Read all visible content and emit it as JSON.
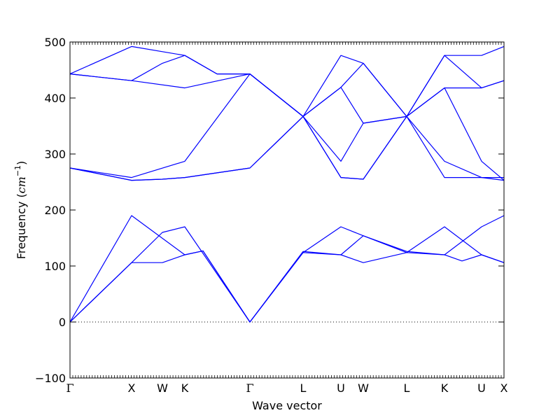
{
  "chart_data": {
    "type": "line",
    "title": "",
    "xlabel": "Wave vector",
    "ylabel": {
      "text": "Frequency (",
      "unit": "cm",
      "exponent": "−1",
      "close": ")"
    },
    "ylim": [
      -100,
      500
    ],
    "yticks": [
      -100,
      0,
      100,
      200,
      300,
      400,
      500
    ],
    "x_range": [
      0,
      620
    ],
    "zero_line": true,
    "line_color": "#0000ff",
    "high_symmetry_points": [
      {
        "label": "Γ",
        "x": 0
      },
      {
        "label": "X",
        "x": 88
      },
      {
        "label": "W",
        "x": 132
      },
      {
        "label": "K",
        "x": 164
      },
      {
        "label": "Γ",
        "x": 257
      },
      {
        "label": "L",
        "x": 333
      },
      {
        "label": "U",
        "x": 387
      },
      {
        "label": "W",
        "x": 419
      },
      {
        "label": "L",
        "x": 481
      },
      {
        "label": "K",
        "x": 535
      },
      {
        "label": "U",
        "x": 588
      },
      {
        "label": "X",
        "x": 620
      }
    ],
    "series": [
      {
        "points": [
          [
            0,
            0
          ],
          [
            88,
            106
          ],
          [
            132,
            106
          ],
          [
            164,
            120
          ],
          [
            190,
            127
          ],
          [
            257,
            0
          ],
          [
            333,
            124
          ],
          [
            387,
            120
          ],
          [
            419,
            106
          ],
          [
            481,
            124
          ],
          [
            535,
            120
          ],
          [
            560,
            109
          ],
          [
            588,
            120
          ],
          [
            620,
            106
          ]
        ]
      },
      {
        "points": [
          [
            0,
            0
          ],
          [
            88,
            106
          ],
          [
            132,
            160
          ],
          [
            164,
            170
          ],
          [
            257,
            0
          ],
          [
            333,
            124
          ],
          [
            387,
            170
          ],
          [
            419,
            154
          ],
          [
            481,
            124
          ],
          [
            535,
            170
          ],
          [
            588,
            120
          ],
          [
            620,
            106
          ]
        ]
      },
      {
        "points": [
          [
            0,
            0
          ],
          [
            88,
            190
          ],
          [
            164,
            120
          ],
          [
            190,
            127
          ],
          [
            257,
            0
          ],
          [
            333,
            126
          ],
          [
            387,
            120
          ],
          [
            419,
            154
          ],
          [
            481,
            126
          ],
          [
            535,
            120
          ],
          [
            588,
            170
          ],
          [
            620,
            190
          ]
        ]
      },
      {
        "points": [
          [
            0,
            275
          ],
          [
            88,
            253
          ],
          [
            132,
            255
          ],
          [
            164,
            258
          ],
          [
            257,
            275
          ],
          [
            333,
            367
          ],
          [
            387,
            258
          ],
          [
            419,
            255
          ],
          [
            481,
            367
          ],
          [
            535,
            258
          ],
          [
            588,
            258
          ],
          [
            620,
            258
          ]
        ]
      },
      {
        "points": [
          [
            0,
            275
          ],
          [
            88,
            253
          ],
          [
            132,
            255
          ],
          [
            164,
            258
          ],
          [
            257,
            275
          ],
          [
            333,
            367
          ],
          [
            387,
            287
          ],
          [
            419,
            355
          ],
          [
            481,
            367
          ],
          [
            535,
            287
          ],
          [
            588,
            258
          ],
          [
            620,
            253
          ]
        ]
      },
      {
        "points": [
          [
            0,
            275
          ],
          [
            88,
            258
          ],
          [
            164,
            287
          ],
          [
            257,
            443
          ],
          [
            333,
            367
          ],
          [
            387,
            258
          ],
          [
            419,
            255
          ],
          [
            481,
            367
          ],
          [
            535,
            418
          ],
          [
            588,
            287
          ],
          [
            620,
            253
          ]
        ]
      },
      {
        "points": [
          [
            0,
            443
          ],
          [
            88,
            431
          ],
          [
            164,
            418
          ],
          [
            257,
            443
          ],
          [
            333,
            367
          ],
          [
            387,
            419
          ],
          [
            419,
            462
          ],
          [
            481,
            367
          ],
          [
            535,
            418
          ],
          [
            588,
            418
          ],
          [
            620,
            431
          ]
        ]
      },
      {
        "points": [
          [
            0,
            443
          ],
          [
            88,
            431
          ],
          [
            132,
            462
          ],
          [
            164,
            476
          ],
          [
            210,
            443
          ],
          [
            257,
            443
          ],
          [
            333,
            367
          ],
          [
            387,
            476
          ],
          [
            419,
            462
          ],
          [
            481,
            367
          ],
          [
            535,
            476
          ],
          [
            588,
            476
          ],
          [
            620,
            492
          ]
        ]
      },
      {
        "points": [
          [
            0,
            443
          ],
          [
            88,
            492
          ],
          [
            164,
            476
          ],
          [
            210,
            443
          ],
          [
            257,
            443
          ],
          [
            333,
            367
          ],
          [
            387,
            419
          ],
          [
            419,
            355
          ],
          [
            481,
            367
          ],
          [
            535,
            476
          ],
          [
            588,
            418
          ],
          [
            620,
            431
          ]
        ]
      }
    ]
  }
}
